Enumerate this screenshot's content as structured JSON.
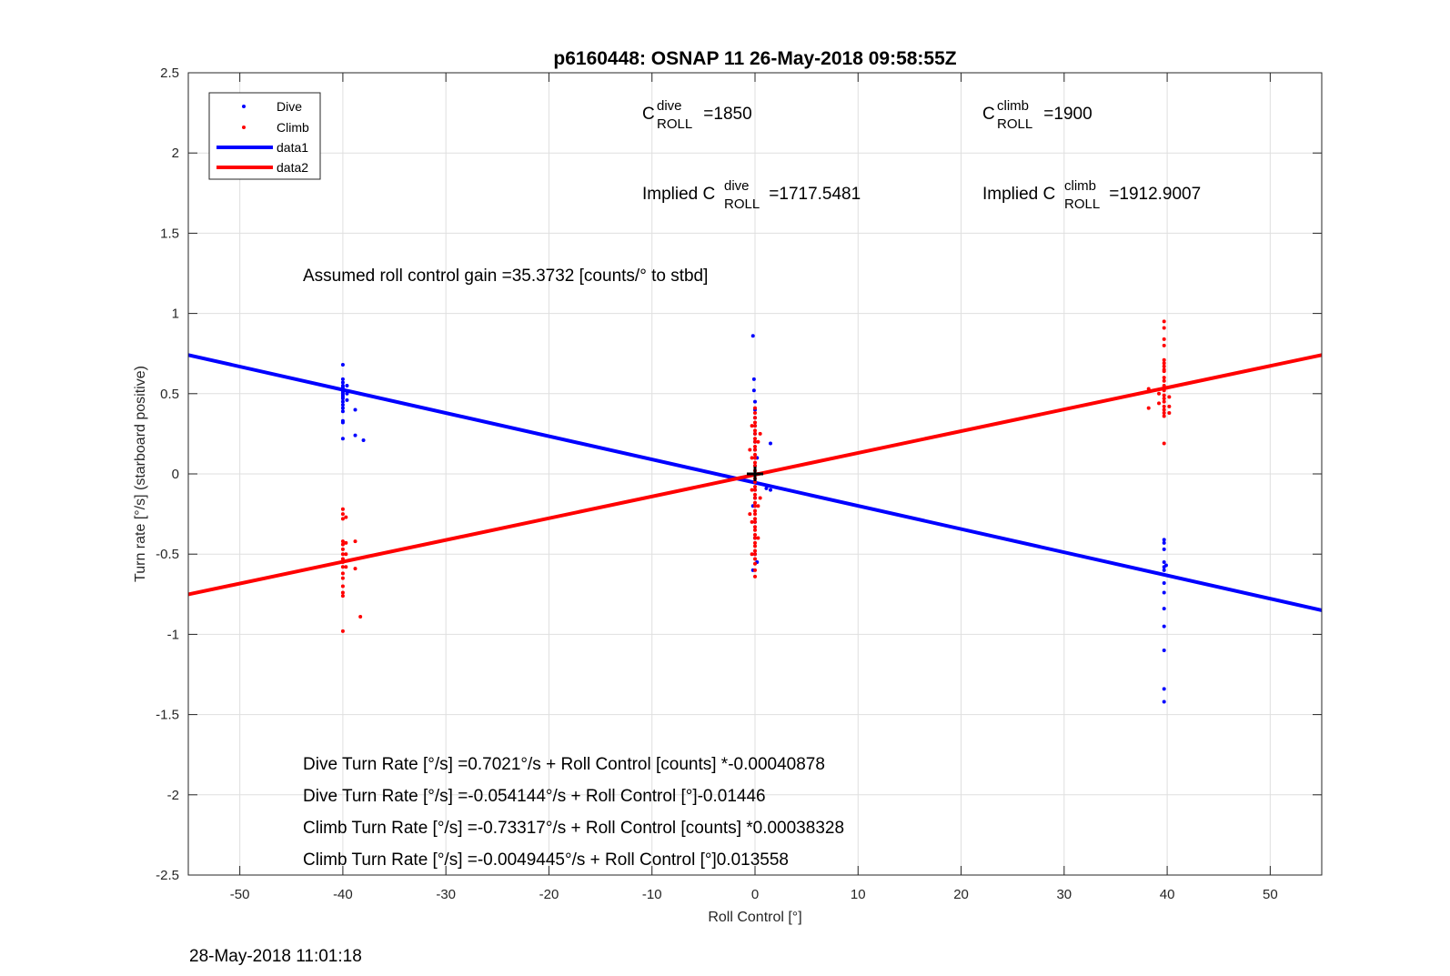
{
  "chart_data": {
    "type": "scatter",
    "title": "p6160448: OSNAP 11 26-May-2018 09:58:55Z",
    "xlabel": "Roll Control [°]",
    "ylabel": "Turn rate [°/s] (starboard positive)",
    "xlim": [
      -55,
      55
    ],
    "ylim": [
      -2.5,
      2.5
    ],
    "xticks": [
      -50,
      -40,
      -30,
      -20,
      -10,
      0,
      10,
      20,
      30,
      40,
      50
    ],
    "yticks": [
      -2.5,
      -2,
      -1.5,
      -1,
      -0.5,
      0,
      0.5,
      1,
      1.5,
      2,
      2.5
    ],
    "xtick_labels": [
      "-50",
      "-40",
      "-30",
      "-20",
      "-10",
      "0",
      "10",
      "20",
      "30",
      "40",
      "50"
    ],
    "ytick_labels": [
      "-2.5",
      "-2",
      "-1.5",
      "-1",
      "-0.5",
      "0",
      "0.5",
      "1",
      "1.5",
      "2",
      "2.5"
    ],
    "grid": true,
    "legend_position": "top-left",
    "series": [
      {
        "name": "Dive",
        "kind": "scatter",
        "color": "#0000ff",
        "points": [
          [
            -40,
            0.68
          ],
          [
            -40,
            0.59
          ],
          [
            -40,
            0.57
          ],
          [
            -40,
            0.55
          ],
          [
            -40,
            0.54
          ],
          [
            -40,
            0.53
          ],
          [
            -40,
            0.52
          ],
          [
            -40,
            0.51
          ],
          [
            -40,
            0.5
          ],
          [
            -40,
            0.49
          ],
          [
            -40,
            0.48
          ],
          [
            -40,
            0.47
          ],
          [
            -40,
            0.45
          ],
          [
            -40,
            0.43
          ],
          [
            -40,
            0.41
          ],
          [
            -40,
            0.39
          ],
          [
            -40,
            0.33
          ],
          [
            -40,
            0.32
          ],
          [
            -40,
            0.22
          ],
          [
            -39.6,
            0.55
          ],
          [
            -39.6,
            0.5
          ],
          [
            -39.6,
            0.46
          ],
          [
            -38.8,
            0.4
          ],
          [
            -38.8,
            0.24
          ],
          [
            -38.0,
            0.21
          ],
          [
            -0.2,
            0.86
          ],
          [
            -0.1,
            0.59
          ],
          [
            -0.1,
            0.52
          ],
          [
            0,
            0.45
          ],
          [
            0,
            0.4
          ],
          [
            0,
            0.35
          ],
          [
            0,
            0.3
          ],
          [
            0,
            0.25
          ],
          [
            0,
            0.2
          ],
          [
            0,
            0.15
          ],
          [
            0,
            0.1
          ],
          [
            0,
            0.05
          ],
          [
            0,
            0
          ],
          [
            0,
            -0.05
          ],
          [
            0,
            -0.1
          ],
          [
            0,
            -0.15
          ],
          [
            0,
            -0.2
          ],
          [
            0,
            -0.3
          ],
          [
            0,
            -0.4
          ],
          [
            0,
            -0.5
          ],
          [
            0.2,
            -0.55
          ],
          [
            -0.2,
            -0.6
          ],
          [
            0.2,
            0.1
          ],
          [
            -0.2,
            -0.2
          ],
          [
            1.5,
            0.19
          ],
          [
            1.5,
            -0.1
          ],
          [
            1.1,
            -0.09
          ],
          [
            39.7,
            -0.41
          ],
          [
            39.7,
            -0.43
          ],
          [
            39.7,
            -0.47
          ],
          [
            39.7,
            -0.55
          ],
          [
            39.7,
            -0.58
          ],
          [
            39.7,
            -0.6
          ],
          [
            39.7,
            -0.68
          ],
          [
            39.7,
            -0.74
          ],
          [
            39.7,
            -0.84
          ],
          [
            39.7,
            -0.95
          ],
          [
            39.7,
            -1.1
          ],
          [
            39.7,
            -1.34
          ],
          [
            39.7,
            -1.42
          ],
          [
            39.9,
            -0.57
          ]
        ]
      },
      {
        "name": "Climb",
        "kind": "scatter",
        "color": "#ff0000",
        "points": [
          [
            -40,
            -0.22
          ],
          [
            -40,
            -0.25
          ],
          [
            -40,
            -0.28
          ],
          [
            -40,
            -0.42
          ],
          [
            -40,
            -0.44
          ],
          [
            -40,
            -0.47
          ],
          [
            -40,
            -0.5
          ],
          [
            -40,
            -0.53
          ],
          [
            -40,
            -0.55
          ],
          [
            -40,
            -0.58
          ],
          [
            -40,
            -0.62
          ],
          [
            -40,
            -0.65
          ],
          [
            -40,
            -0.7
          ],
          [
            -40,
            -0.74
          ],
          [
            -40,
            -0.76
          ],
          [
            -40,
            -0.98
          ],
          [
            -39.7,
            -0.27
          ],
          [
            -39.7,
            -0.43
          ],
          [
            -39.7,
            -0.5
          ],
          [
            -39.7,
            -0.58
          ],
          [
            -38.8,
            -0.42
          ],
          [
            -38.8,
            -0.59
          ],
          [
            -38.3,
            -0.89
          ],
          [
            0,
            0.41
          ],
          [
            0,
            0.38
          ],
          [
            0,
            0.35
          ],
          [
            0,
            0.32
          ],
          [
            0,
            0.3
          ],
          [
            0,
            0.27
          ],
          [
            0,
            0.25
          ],
          [
            0,
            0.22
          ],
          [
            0,
            0.2
          ],
          [
            0,
            0.17
          ],
          [
            0,
            0.15
          ],
          [
            0,
            0.12
          ],
          [
            0,
            0.1
          ],
          [
            0,
            0.07
          ],
          [
            0,
            0.05
          ],
          [
            0,
            0.02
          ],
          [
            0,
            0
          ],
          [
            0,
            -0.03
          ],
          [
            0,
            -0.05
          ],
          [
            0,
            -0.08
          ],
          [
            0,
            -0.1
          ],
          [
            0,
            -0.13
          ],
          [
            0,
            -0.15
          ],
          [
            0,
            -0.18
          ],
          [
            0,
            -0.2
          ],
          [
            0,
            -0.23
          ],
          [
            0,
            -0.25
          ],
          [
            0,
            -0.28
          ],
          [
            0,
            -0.3
          ],
          [
            0,
            -0.33
          ],
          [
            0,
            -0.35
          ],
          [
            0,
            -0.38
          ],
          [
            0,
            -0.4
          ],
          [
            0,
            -0.43
          ],
          [
            0,
            -0.45
          ],
          [
            0,
            -0.48
          ],
          [
            0,
            -0.5
          ],
          [
            0,
            -0.53
          ],
          [
            0,
            -0.56
          ],
          [
            0,
            -0.6
          ],
          [
            0,
            -0.64
          ],
          [
            -0.3,
            0.3
          ],
          [
            -0.3,
            0.1
          ],
          [
            -0.3,
            -0.1
          ],
          [
            -0.3,
            -0.3
          ],
          [
            -0.3,
            -0.5
          ],
          [
            0.3,
            0.2
          ],
          [
            0.3,
            0
          ],
          [
            0.3,
            -0.2
          ],
          [
            0.3,
            -0.4
          ],
          [
            -0.5,
            0.15
          ],
          [
            -0.5,
            -0.25
          ],
          [
            0.5,
            -0.15
          ],
          [
            0.5,
            0.25
          ],
          [
            39.7,
            0.95
          ],
          [
            39.7,
            0.91
          ],
          [
            39.7,
            0.84
          ],
          [
            39.7,
            0.8
          ],
          [
            39.7,
            0.71
          ],
          [
            39.7,
            0.69
          ],
          [
            39.7,
            0.67
          ],
          [
            39.7,
            0.65
          ],
          [
            39.7,
            0.64
          ],
          [
            39.7,
            0.6
          ],
          [
            39.7,
            0.58
          ],
          [
            39.7,
            0.55
          ],
          [
            39.7,
            0.52
          ],
          [
            39.7,
            0.49
          ],
          [
            39.7,
            0.47
          ],
          [
            39.7,
            0.45
          ],
          [
            39.7,
            0.42
          ],
          [
            39.7,
            0.4
          ],
          [
            39.7,
            0.38
          ],
          [
            39.7,
            0.36
          ],
          [
            39.7,
            0.19
          ],
          [
            38.2,
            0.53
          ],
          [
            38.2,
            0.41
          ],
          [
            39.2,
            0.5
          ],
          [
            39.2,
            0.44
          ],
          [
            40.2,
            0.48
          ],
          [
            40.2,
            0.42
          ],
          [
            40.2,
            0.38
          ]
        ]
      },
      {
        "name": "data1",
        "kind": "line",
        "color": "#0000ff",
        "points": [
          [
            -55,
            0.741
          ],
          [
            55,
            -0.85
          ]
        ]
      },
      {
        "name": "data2",
        "kind": "line",
        "color": "#ff0000",
        "points": [
          [
            -55,
            -0.751
          ],
          [
            55,
            0.741
          ]
        ]
      }
    ],
    "center_marker": {
      "x": 0,
      "y": 0,
      "color": "#000000"
    },
    "annotations": {
      "c_roll_dive": {
        "prefix": "C",
        "sup": "dive",
        "sub": "ROLL",
        "value": " =1850"
      },
      "c_roll_climb": {
        "prefix": "C",
        "sup": "climb",
        "sub": "ROLL",
        "value": " =1900"
      },
      "implied_dive": {
        "prefix": "Implied C",
        "sup": "dive",
        "sub": "ROLL",
        "value": " =1717.5481"
      },
      "implied_climb": {
        "prefix": "Implied C",
        "sup": "climb",
        "sub": "ROLL",
        "value": " =1912.9007"
      },
      "gain": "Assumed roll control gain =35.3732 [counts/° to stbd]",
      "fits": [
        "Dive Turn Rate [°/s] =0.7021°/s + Roll Control [counts] *-0.00040878",
        "Dive Turn Rate [°/s] =-0.054144°/s + Roll Control [°]-0.01446",
        "Climb Turn Rate [°/s] =-0.73317°/s + Roll Control [counts] *0.00038328",
        "Climb Turn Rate [°/s] =-0.0049445°/s + Roll Control [°]0.013558"
      ]
    }
  },
  "footer": {
    "timestamp": "28-May-2018 11:01:18"
  }
}
